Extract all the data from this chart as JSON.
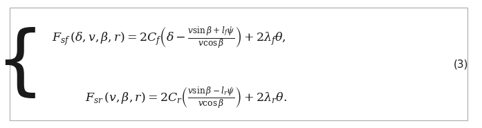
{
  "eq1": "$F_{sf}\\,(\\delta,v,\\beta,r)=2C_f\\left(\\delta-\\frac{v\\sin\\beta+l_f\\dot{\\psi}}{v\\cos\\beta}\\right)+2\\lambda_f\\theta,$",
  "eq2": "$F_{sr}\\,(v,\\beta,r)=2C_r\\left(\\frac{v\\sin\\beta-l_r\\dot{\\psi}}{v\\cos\\beta}\\right)+2\\lambda_r\\theta.$",
  "eq_number": "(3)",
  "bg_color": "#ffffff",
  "text_color": "#1a1a1a",
  "fontsize": 12.5,
  "eq_num_fontsize": 11,
  "brace_fontsize": 80
}
